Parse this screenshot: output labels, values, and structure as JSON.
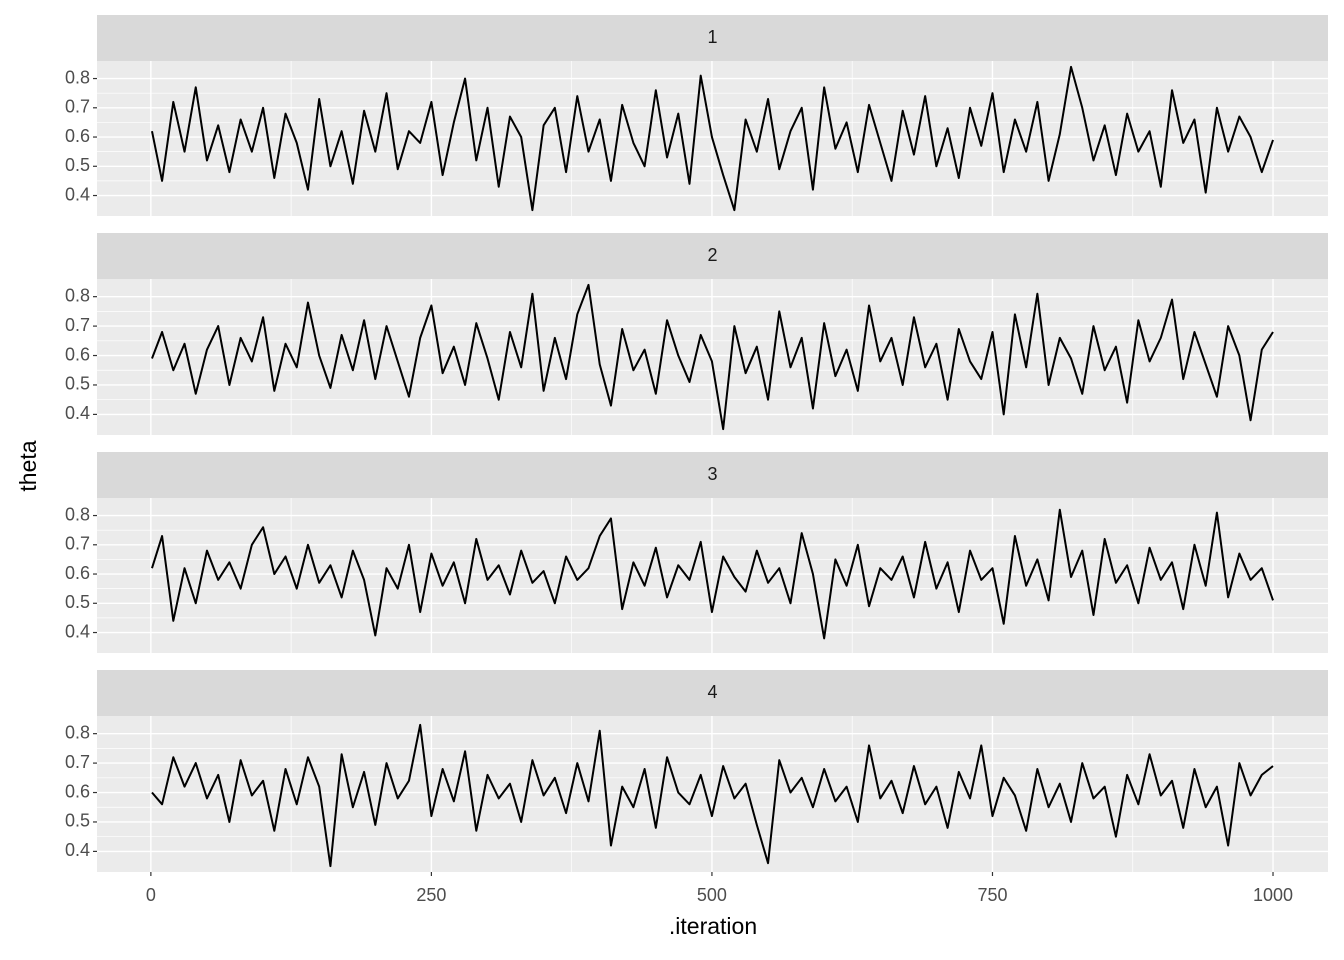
{
  "chart_data": {
    "type": "line",
    "x_label": ".iteration",
    "y_label": "theta",
    "xlim": [
      -48,
      1049
    ],
    "xticks": [
      0,
      250,
      500,
      750,
      1000
    ],
    "ylim": [
      0.33,
      0.86
    ],
    "yticks": [
      0.4,
      0.5,
      0.6,
      0.7,
      0.8
    ],
    "grid": true,
    "x": [
      1,
      10,
      20,
      30,
      40,
      50,
      60,
      70,
      80,
      90,
      100,
      110,
      120,
      130,
      140,
      150,
      160,
      170,
      180,
      190,
      200,
      210,
      220,
      230,
      240,
      250,
      260,
      270,
      280,
      290,
      300,
      310,
      320,
      330,
      340,
      350,
      360,
      370,
      380,
      390,
      400,
      410,
      420,
      430,
      440,
      450,
      460,
      470,
      480,
      490,
      500,
      510,
      520,
      530,
      540,
      550,
      560,
      570,
      580,
      590,
      600,
      610,
      620,
      630,
      640,
      650,
      660,
      670,
      680,
      690,
      700,
      710,
      720,
      730,
      740,
      750,
      760,
      770,
      780,
      790,
      800,
      810,
      820,
      830,
      840,
      850,
      860,
      870,
      880,
      890,
      900,
      910,
      920,
      930,
      940,
      950,
      960,
      970,
      980,
      990,
      1000
    ],
    "series": [
      {
        "name": "1",
        "color": "#000000",
        "values": [
          0.62,
          0.45,
          0.72,
          0.55,
          0.77,
          0.52,
          0.64,
          0.48,
          0.66,
          0.55,
          0.7,
          0.46,
          0.68,
          0.58,
          0.42,
          0.73,
          0.5,
          0.62,
          0.44,
          0.69,
          0.55,
          0.75,
          0.49,
          0.62,
          0.58,
          0.72,
          0.47,
          0.65,
          0.8,
          0.52,
          0.7,
          0.43,
          0.67,
          0.6,
          0.35,
          0.64,
          0.7,
          0.48,
          0.74,
          0.55,
          0.66,
          0.45,
          0.71,
          0.58,
          0.5,
          0.76,
          0.53,
          0.68,
          0.44,
          0.81,
          0.6,
          0.47,
          0.35,
          0.66,
          0.55,
          0.73,
          0.49,
          0.62,
          0.7,
          0.42,
          0.77,
          0.56,
          0.65,
          0.48,
          0.71,
          0.58,
          0.45,
          0.69,
          0.54,
          0.74,
          0.5,
          0.63,
          0.46,
          0.7,
          0.57,
          0.75,
          0.48,
          0.66,
          0.55,
          0.72,
          0.45,
          0.61,
          0.84,
          0.7,
          0.52,
          0.64,
          0.47,
          0.68,
          0.55,
          0.62,
          0.43,
          0.76,
          0.58,
          0.66,
          0.41,
          0.7,
          0.55,
          0.67,
          0.6,
          0.48,
          0.59
        ]
      },
      {
        "name": "2",
        "color": "#000000",
        "values": [
          0.59,
          0.68,
          0.55,
          0.64,
          0.47,
          0.62,
          0.7,
          0.5,
          0.66,
          0.58,
          0.73,
          0.48,
          0.64,
          0.56,
          0.78,
          0.6,
          0.49,
          0.67,
          0.55,
          0.72,
          0.52,
          0.7,
          0.58,
          0.46,
          0.66,
          0.77,
          0.54,
          0.63,
          0.5,
          0.71,
          0.59,
          0.45,
          0.68,
          0.56,
          0.81,
          0.48,
          0.66,
          0.52,
          0.74,
          0.84,
          0.57,
          0.43,
          0.69,
          0.55,
          0.62,
          0.47,
          0.72,
          0.6,
          0.51,
          0.67,
          0.58,
          0.35,
          0.7,
          0.54,
          0.63,
          0.45,
          0.75,
          0.56,
          0.66,
          0.42,
          0.71,
          0.53,
          0.62,
          0.48,
          0.77,
          0.58,
          0.66,
          0.5,
          0.73,
          0.56,
          0.64,
          0.45,
          0.69,
          0.58,
          0.52,
          0.68,
          0.4,
          0.74,
          0.56,
          0.81,
          0.5,
          0.66,
          0.59,
          0.47,
          0.7,
          0.55,
          0.63,
          0.44,
          0.72,
          0.58,
          0.66,
          0.79,
          0.52,
          0.68,
          0.57,
          0.46,
          0.7,
          0.6,
          0.38,
          0.62,
          0.68
        ]
      },
      {
        "name": "3",
        "color": "#000000",
        "values": [
          0.62,
          0.73,
          0.44,
          0.62,
          0.5,
          0.68,
          0.58,
          0.64,
          0.55,
          0.7,
          0.76,
          0.6,
          0.66,
          0.55,
          0.7,
          0.57,
          0.63,
          0.52,
          0.68,
          0.58,
          0.39,
          0.62,
          0.55,
          0.7,
          0.47,
          0.67,
          0.56,
          0.64,
          0.5,
          0.72,
          0.58,
          0.63,
          0.53,
          0.68,
          0.57,
          0.61,
          0.5,
          0.66,
          0.58,
          0.62,
          0.73,
          0.79,
          0.48,
          0.64,
          0.56,
          0.69,
          0.52,
          0.63,
          0.58,
          0.71,
          0.47,
          0.66,
          0.59,
          0.54,
          0.68,
          0.57,
          0.62,
          0.5,
          0.74,
          0.6,
          0.38,
          0.65,
          0.56,
          0.7,
          0.49,
          0.62,
          0.58,
          0.66,
          0.52,
          0.71,
          0.55,
          0.64,
          0.47,
          0.68,
          0.58,
          0.62,
          0.43,
          0.73,
          0.56,
          0.65,
          0.51,
          0.82,
          0.59,
          0.68,
          0.46,
          0.72,
          0.57,
          0.63,
          0.5,
          0.69,
          0.58,
          0.64,
          0.48,
          0.7,
          0.56,
          0.81,
          0.52,
          0.67,
          0.58,
          0.62,
          0.51
        ]
      },
      {
        "name": "4",
        "color": "#000000",
        "values": [
          0.6,
          0.56,
          0.72,
          0.62,
          0.7,
          0.58,
          0.66,
          0.5,
          0.71,
          0.59,
          0.64,
          0.47,
          0.68,
          0.56,
          0.72,
          0.62,
          0.35,
          0.73,
          0.55,
          0.67,
          0.49,
          0.7,
          0.58,
          0.64,
          0.83,
          0.52,
          0.68,
          0.57,
          0.74,
          0.47,
          0.66,
          0.58,
          0.63,
          0.5,
          0.71,
          0.59,
          0.65,
          0.53,
          0.7,
          0.57,
          0.81,
          0.42,
          0.62,
          0.55,
          0.68,
          0.48,
          0.72,
          0.6,
          0.56,
          0.66,
          0.52,
          0.69,
          0.58,
          0.63,
          0.49,
          0.36,
          0.71,
          0.6,
          0.65,
          0.55,
          0.68,
          0.57,
          0.62,
          0.5,
          0.76,
          0.58,
          0.64,
          0.53,
          0.69,
          0.56,
          0.62,
          0.48,
          0.67,
          0.58,
          0.76,
          0.52,
          0.65,
          0.59,
          0.47,
          0.68,
          0.55,
          0.63,
          0.5,
          0.7,
          0.58,
          0.62,
          0.45,
          0.66,
          0.56,
          0.73,
          0.59,
          0.64,
          0.48,
          0.68,
          0.55,
          0.62,
          0.42,
          0.7,
          0.59,
          0.66,
          0.69
        ]
      }
    ]
  }
}
